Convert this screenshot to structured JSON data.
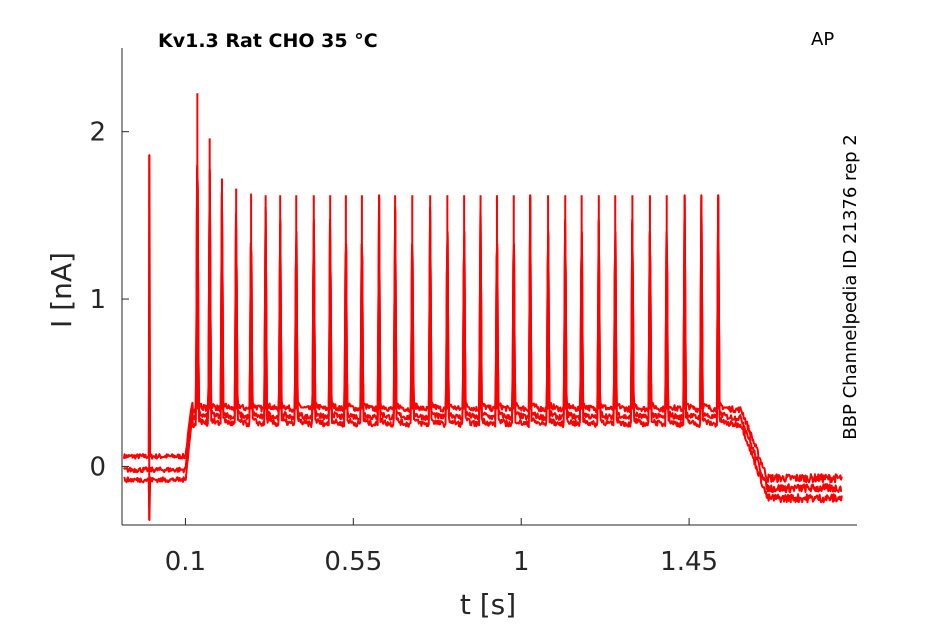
{
  "chart_data": {
    "type": "line",
    "title": "Kv1.3  Rat  CHO  35 °C",
    "corner_label": "AP",
    "side_label": "BBP Channelpedia ID 21376 rep 2",
    "xlabel": "t [s]",
    "ylabel": "I [nA]",
    "xlim": [
      -0.07,
      1.9
    ],
    "ylim": [
      -0.35,
      2.5
    ],
    "xticks": [
      0.1,
      0.55,
      1,
      1.45
    ],
    "xtick_labels": [
      "0.1",
      "0.55",
      "1",
      "1.45"
    ],
    "yticks": [
      0,
      1,
      2
    ],
    "ytick_labels": [
      "0",
      "1",
      "2"
    ],
    "grid": false,
    "color": "#ff0000",
    "stimulus": {
      "onset_s": 0.1,
      "offset_s": 1.59,
      "prepulse_spike_s": 0.003,
      "spike_times_s": [
        0.132,
        0.165,
        0.198,
        0.236,
        0.276,
        0.315,
        0.354,
        0.397,
        0.444,
        0.488,
        0.53,
        0.573,
        0.619,
        0.662,
        0.708,
        0.756,
        0.802,
        0.847,
        0.891,
        0.935,
        0.98,
        1.024,
        1.072,
        1.118,
        1.162,
        1.208,
        1.252,
        1.298,
        1.345,
        1.39,
        1.438,
        1.483,
        1.528
      ],
      "spike_peaks_nA": [
        2.23,
        1.96,
        1.72,
        1.66,
        1.63,
        1.62,
        1.62,
        1.62,
        1.62,
        1.62,
        1.62,
        1.62,
        1.62,
        1.62,
        1.62,
        1.62,
        1.62,
        1.62,
        1.62,
        1.62,
        1.62,
        1.62,
        1.62,
        1.62,
        1.62,
        1.62,
        1.62,
        1.62,
        1.62,
        1.62,
        1.62,
        1.62,
        1.62
      ],
      "prepulse_spike_peak_nA": 1.86
    },
    "series": [
      {
        "baseline_pre_nA": 0.06,
        "plateau_nA": 0.34,
        "tail_nA": -0.07
      },
      {
        "baseline_pre_nA": -0.02,
        "plateau_nA": 0.29,
        "tail_nA": -0.13
      },
      {
        "baseline_pre_nA": -0.08,
        "plateau_nA": 0.25,
        "tail_nA": -0.19
      }
    ]
  }
}
